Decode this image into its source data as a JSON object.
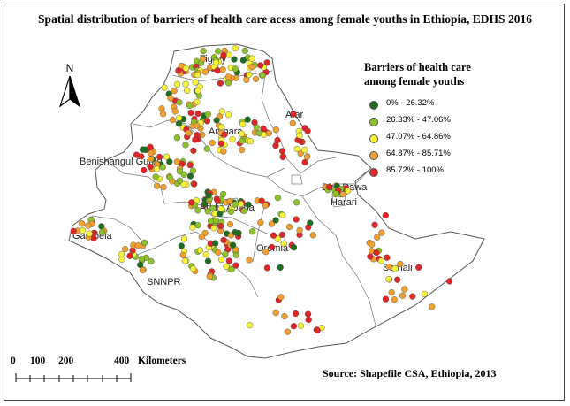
{
  "title": "Spatial distribution of barriers of health care acess among female youths in Ethiopia, EDHS 2016",
  "legend": {
    "title_line1": "Barriers of health care",
    "title_line2": "among female youths",
    "items": [
      {
        "label": "0% - 26.32%",
        "color": "#1f6e1f"
      },
      {
        "label": "26.33% - 47.06%",
        "color": "#8ec22a"
      },
      {
        "label": "47.07% - 64.86%",
        "color": "#f6f23a"
      },
      {
        "label": "64.87% - 85.71%",
        "color": "#f0a030"
      },
      {
        "label": "85.72% - 100%",
        "color": "#e02626"
      }
    ]
  },
  "north_label": "N",
  "regions": [
    {
      "name": "Tigray"
    },
    {
      "name": "Afar"
    },
    {
      "name": "Amhara"
    },
    {
      "name": "Benishangul Gumu"
    },
    {
      "name": "Dire Dawa"
    },
    {
      "name": "Harari"
    },
    {
      "name": "Addis Ababa"
    },
    {
      "name": "Gambela"
    },
    {
      "name": "Oromia"
    },
    {
      "name": "Somali"
    },
    {
      "name": "SNNPR"
    }
  ],
  "scale": {
    "ticks": [
      "0",
      "100",
      "200",
      "400"
    ],
    "unit": "Kilometers"
  },
  "source": "Source: Shapefile CSA, Ethiopia, 2013"
}
